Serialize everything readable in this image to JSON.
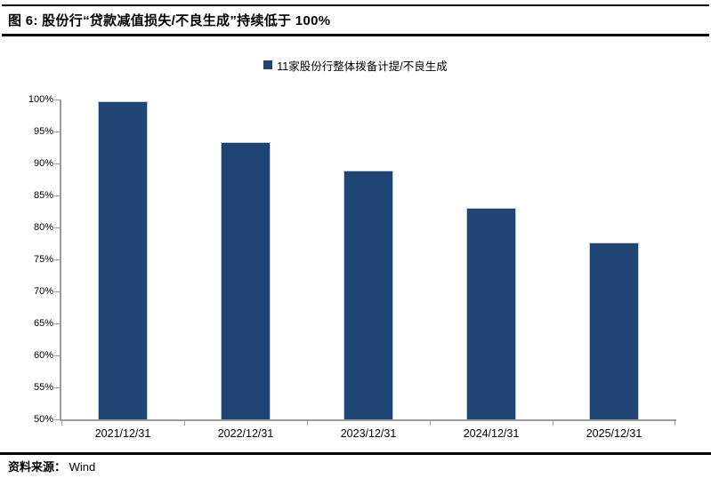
{
  "figure": {
    "title": "图 6:  股份行“贷款减值损失/不良生成”持续低于 100%",
    "source_label": "资料来源：",
    "source_value": "Wind"
  },
  "chart_data": {
    "type": "bar",
    "title": "股份行“贷款减值损失/不良生成”持续低于 100%",
    "legend": [
      {
        "name": "11家股份行整体拨备计提/不良生成",
        "color": "#1e4574"
      }
    ],
    "legend_position": "top",
    "categories": [
      "2021/12/31",
      "2022/12/31",
      "2023/12/31",
      "2024/12/31",
      "2025/12/31"
    ],
    "series": [
      {
        "name": "11家股份行整体拨备计提/不良生成",
        "values": [
          99.7,
          93.3,
          88.9,
          83.1,
          77.7
        ]
      }
    ],
    "xlabel": "",
    "ylabel": "",
    "ylim": [
      50,
      100
    ],
    "yticks": [
      50,
      55,
      60,
      65,
      70,
      75,
      80,
      85,
      90,
      95,
      100
    ],
    "ytick_suffix": "%",
    "grid": false,
    "colors": {
      "bar": "#1e4574",
      "bar_border": "#b6c7db",
      "axis": "#9b9b9b",
      "text": "#000000",
      "rule": "#000000"
    }
  }
}
